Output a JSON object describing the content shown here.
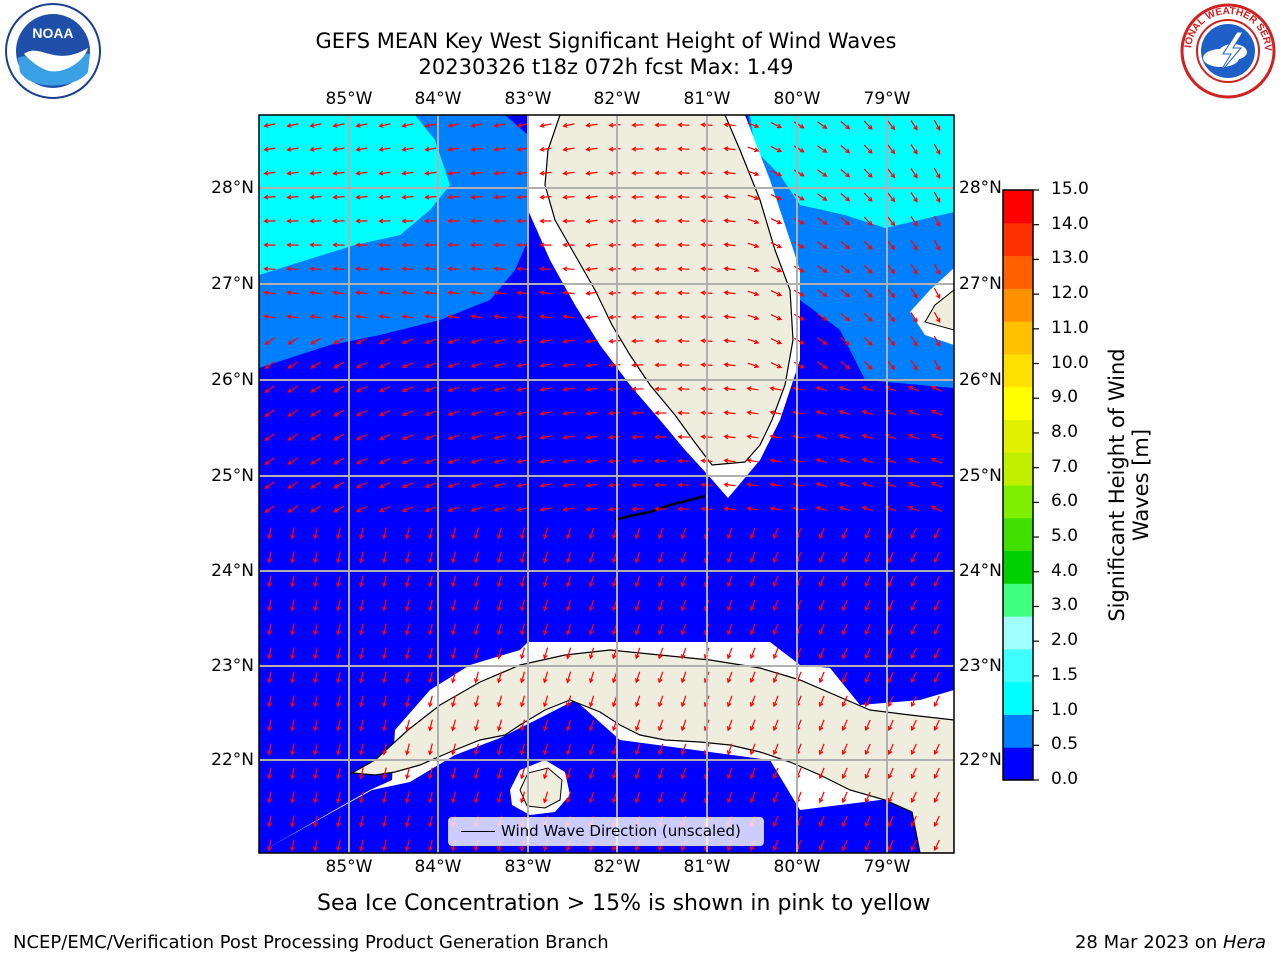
{
  "title": {
    "line1": "GEFS MEAN Key West Significant Height of Wind Waves",
    "line2": "20230326 t18z 072h fcst   Max: 1.49"
  },
  "logos": {
    "left": {
      "name": "noaa-logo",
      "text": "NOAA"
    },
    "right": {
      "name": "nws-logo",
      "text": "NATIONAL WEATHER SERVICE"
    }
  },
  "axes": {
    "lon_labels": [
      "85°W",
      "84°W",
      "83°W",
      "82°W",
      "81°W",
      "80°W",
      "79°W"
    ],
    "lat_labels": [
      "28°N",
      "27°N",
      "26°N",
      "25°N",
      "24°N",
      "23°N",
      "22°N"
    ]
  },
  "legend": {
    "label": "Wind Wave Direction (unscaled)"
  },
  "colorbar": {
    "label": "Significant Height of Wind Waves [m]",
    "ticks": [
      "15.0",
      "14.0",
      "13.0",
      "12.0",
      "11.0",
      "10.0",
      "9.0",
      "8.0",
      "7.0",
      "6.0",
      "5.0",
      "4.0",
      "3.0",
      "2.0",
      "1.5",
      "1.0",
      "0.5",
      "0.0"
    ],
    "colors": [
      "#0000ff",
      "#0080ff",
      "#00ffff",
      "#40ffff",
      "#a0ffff",
      "#40ff80",
      "#00d000",
      "#40e000",
      "#80ee00",
      "#c0f000",
      "#e0f000",
      "#ffff00",
      "#ffe000",
      "#ffc000",
      "#ff9000",
      "#ff6000",
      "#ff3000",
      "#ff0000"
    ]
  },
  "map_colors": {
    "ocean_0_05": "#0000ff",
    "ocean_05_10": "#0080ff",
    "ocean_10_15": "#00ffff",
    "land": "#eeedde",
    "arrows": "#ff0000"
  },
  "note": "Sea Ice Concentration > 15% is shown in pink to yellow",
  "footer": {
    "left": "NCEP/EMC/Verification Post Processing Product Generation Branch",
    "date": "28 Mar 2023 on ",
    "host": "Hera"
  }
}
